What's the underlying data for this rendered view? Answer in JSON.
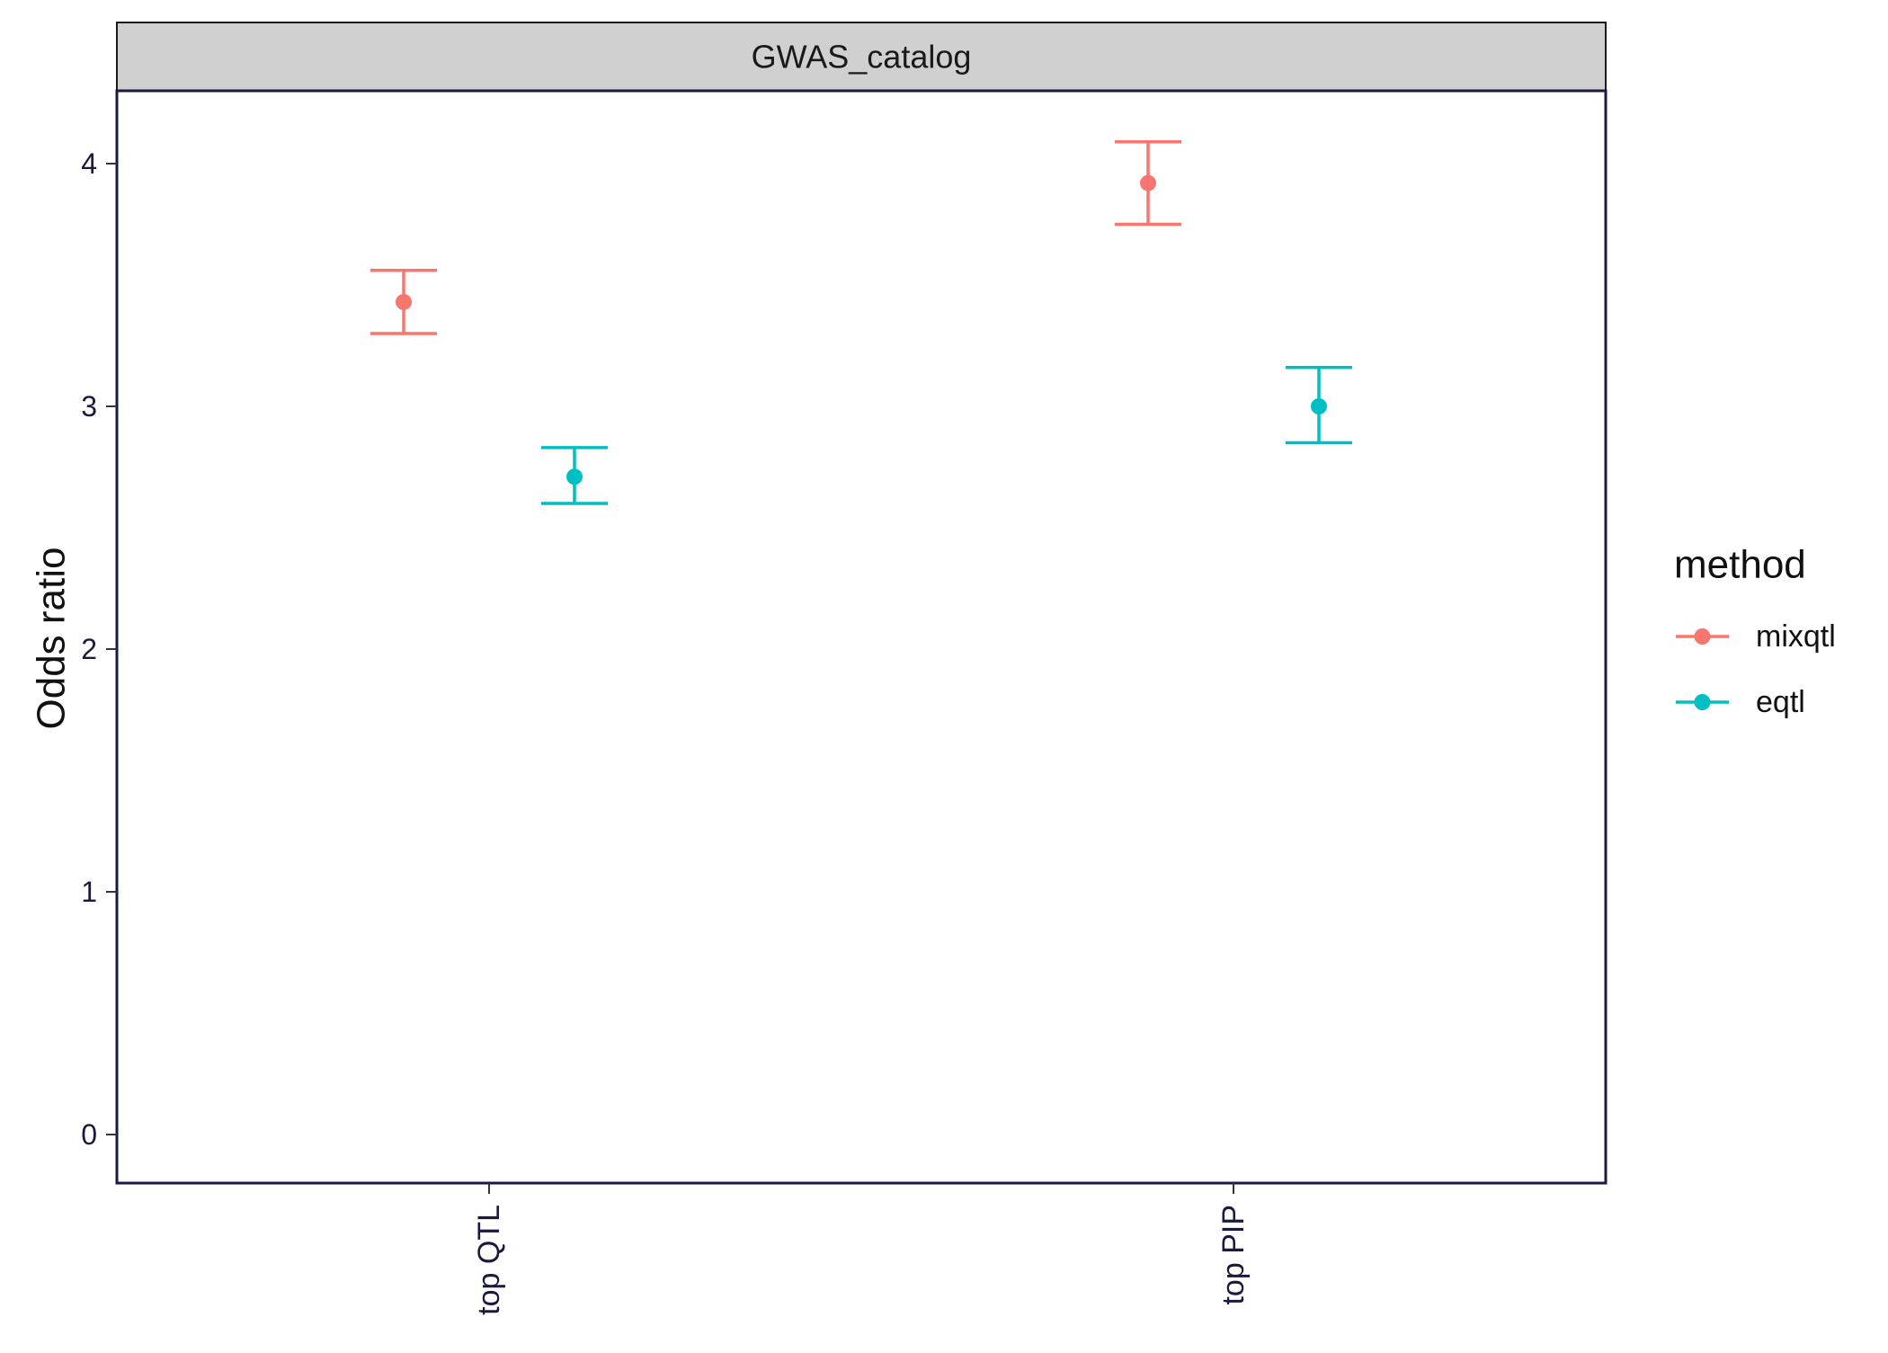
{
  "chart_data": {
    "type": "errorbar",
    "facet_label": "GWAS_catalog",
    "categories": [
      "top QTL",
      "top PIP"
    ],
    "xlabel": "",
    "ylabel": "Odds ratio",
    "ylim": [
      -0.2,
      4.3
    ],
    "yticks": [
      0,
      1,
      2,
      3,
      4
    ],
    "grid": false,
    "legend": {
      "title": "method",
      "position": "right"
    },
    "series": [
      {
        "name": "mixqtl",
        "color": "#F8766D",
        "points": [
          {
            "category": "top QTL",
            "value": 3.43,
            "lower": 3.3,
            "upper": 3.56
          },
          {
            "category": "top PIP",
            "value": 3.92,
            "lower": 3.75,
            "upper": 4.09
          }
        ]
      },
      {
        "name": "eqtl",
        "color": "#00BFC4",
        "points": [
          {
            "category": "top QTL",
            "value": 2.71,
            "lower": 2.6,
            "upper": 2.83
          },
          {
            "category": "top PIP",
            "value": 3.0,
            "lower": 2.85,
            "upper": 3.16
          }
        ]
      }
    ]
  }
}
